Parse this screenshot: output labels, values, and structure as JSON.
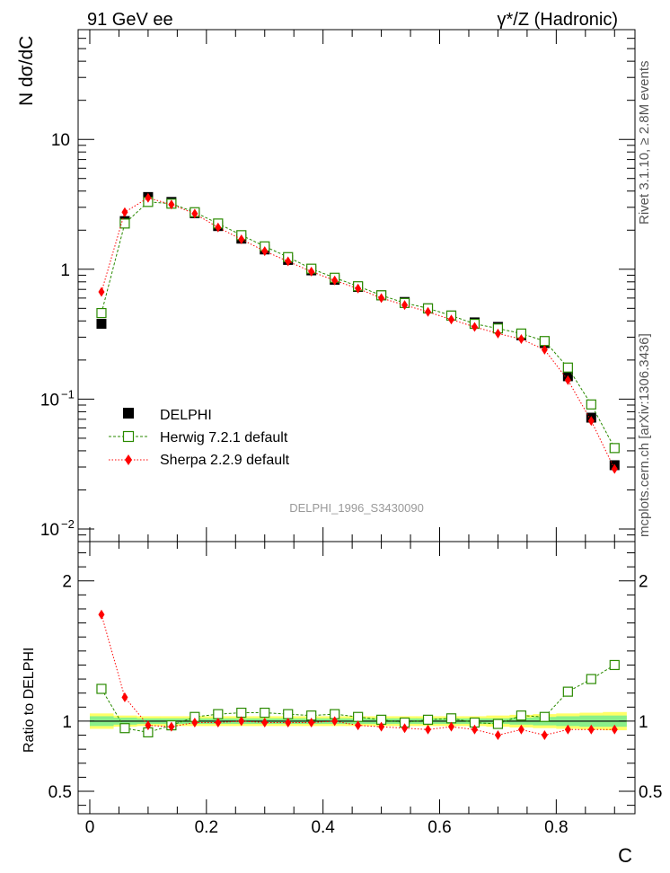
{
  "header": {
    "left_title": "91 GeV ee",
    "right_title": "γ*/Z (Hadronic)"
  },
  "side_labels": {
    "rivet": "Rivet 3.1.10, ≥ 2.8M events",
    "mcplots": "mcplots.cern.ch [arXiv:1306.3436]"
  },
  "watermark": "DELPHI_1996_S3430090",
  "colors": {
    "data": "#000000",
    "herwig": "#2a8a00",
    "sherpa": "#ff0000",
    "band_inner": "#8af08a",
    "band_outer": "#ffff66"
  },
  "chart_data": [
    {
      "type": "scatter",
      "panel": "main",
      "ylabel": "N dσ/dC",
      "yscale": "log",
      "ylim": [
        0.008,
        70
      ],
      "xlim": [
        -0.02,
        0.935
      ],
      "yticks": [
        {
          "value": 0.01,
          "base": "10",
          "exp": "−2"
        },
        {
          "value": 0.1,
          "base": "10",
          "exp": "−1"
        },
        {
          "value": 1,
          "label": "1"
        },
        {
          "value": 10,
          "label": "10"
        }
      ],
      "x": [
        0.02,
        0.06,
        0.1,
        0.14,
        0.18,
        0.22,
        0.26,
        0.3,
        0.34,
        0.38,
        0.42,
        0.46,
        0.5,
        0.54,
        0.58,
        0.62,
        0.66,
        0.7,
        0.74,
        0.78,
        0.82,
        0.86,
        0.9
      ],
      "legend_position": "lower-left",
      "series": [
        {
          "name": "DELPHI",
          "key": "data",
          "marker": "filled-square",
          "values": [
            0.38,
            2.35,
            3.6,
            3.3,
            2.7,
            2.15,
            1.72,
            1.42,
            1.18,
            0.98,
            0.83,
            0.73,
            0.63,
            0.56,
            0.5,
            0.44,
            0.39,
            0.36,
            0.31,
            0.27,
            0.15,
            0.072,
            0.031
          ]
        },
        {
          "name": "Herwig 7.2.1 default",
          "key": "herwig",
          "marker": "open-square",
          "line": "dashed",
          "values": [
            0.46,
            2.25,
            3.3,
            3.2,
            2.75,
            2.25,
            1.83,
            1.5,
            1.24,
            1.01,
            0.86,
            0.74,
            0.63,
            0.55,
            0.5,
            0.44,
            0.38,
            0.35,
            0.32,
            0.28,
            0.175,
            0.091,
            0.042
          ]
        },
        {
          "name": "Sherpa 2.2.9 default",
          "key": "sherpa",
          "marker": "filled-diamond",
          "line": "dotted",
          "values": [
            0.67,
            2.75,
            3.55,
            3.15,
            2.68,
            2.1,
            1.7,
            1.38,
            1.15,
            0.96,
            0.82,
            0.71,
            0.6,
            0.53,
            0.47,
            0.41,
            0.36,
            0.32,
            0.29,
            0.24,
            0.14,
            0.068,
            0.029
          ]
        }
      ]
    },
    {
      "type": "scatter",
      "panel": "ratio",
      "ylabel": "Ratio to DELPHI",
      "xlabel": "C",
      "ylim": [
        0.34,
        2.28
      ],
      "xlim": [
        -0.02,
        0.935
      ],
      "yticks": [
        {
          "value": 0.5,
          "label": "0.5"
        },
        {
          "value": 1,
          "label": "1"
        },
        {
          "value": 2,
          "label": "2"
        }
      ],
      "xticks": [
        {
          "value": 0,
          "label": "0"
        },
        {
          "value": 0.2,
          "label": "0.2"
        },
        {
          "value": 0.4,
          "label": "0.4"
        },
        {
          "value": 0.6,
          "label": "0.6"
        },
        {
          "value": 0.8,
          "label": "0.8"
        }
      ],
      "x": [
        0.02,
        0.06,
        0.1,
        0.14,
        0.18,
        0.22,
        0.26,
        0.3,
        0.34,
        0.38,
        0.42,
        0.46,
        0.5,
        0.54,
        0.58,
        0.62,
        0.66,
        0.7,
        0.74,
        0.78,
        0.82,
        0.86,
        0.9
      ],
      "bands": {
        "inner_halfwidth": [
          0.035,
          0.025,
          0.02,
          0.02,
          0.02,
          0.02,
          0.02,
          0.02,
          0.02,
          0.02,
          0.02,
          0.02,
          0.02,
          0.02,
          0.02,
          0.02,
          0.02,
          0.02,
          0.025,
          0.03,
          0.035,
          0.04,
          0.04
        ],
        "outer_halfwidth": [
          0.055,
          0.04,
          0.035,
          0.035,
          0.035,
          0.035,
          0.035,
          0.035,
          0.035,
          0.035,
          0.035,
          0.035,
          0.035,
          0.035,
          0.035,
          0.035,
          0.035,
          0.04,
          0.045,
          0.05,
          0.055,
          0.06,
          0.065
        ]
      },
      "series": [
        {
          "name": "Herwig 7.2.1 default",
          "key": "herwig",
          "marker": "open-square",
          "line": "dashed",
          "values": [
            1.23,
            0.95,
            0.92,
            0.97,
            1.03,
            1.05,
            1.06,
            1.06,
            1.05,
            1.04,
            1.05,
            1.03,
            1.01,
            0.99,
            1.01,
            1.02,
            0.99,
            0.98,
            1.04,
            1.03,
            1.21,
            1.3,
            1.4
          ]
        },
        {
          "name": "Sherpa 2.2.9 default",
          "key": "sherpa",
          "marker": "filled-diamond",
          "line": "dotted",
          "values": [
            1.76,
            1.17,
            0.97,
            0.96,
            0.99,
            0.99,
            1.0,
            0.99,
            0.99,
            0.99,
            1.0,
            0.97,
            0.96,
            0.95,
            0.94,
            0.96,
            0.94,
            0.9,
            0.94,
            0.9,
            0.94,
            0.94,
            0.94
          ]
        }
      ]
    }
  ]
}
